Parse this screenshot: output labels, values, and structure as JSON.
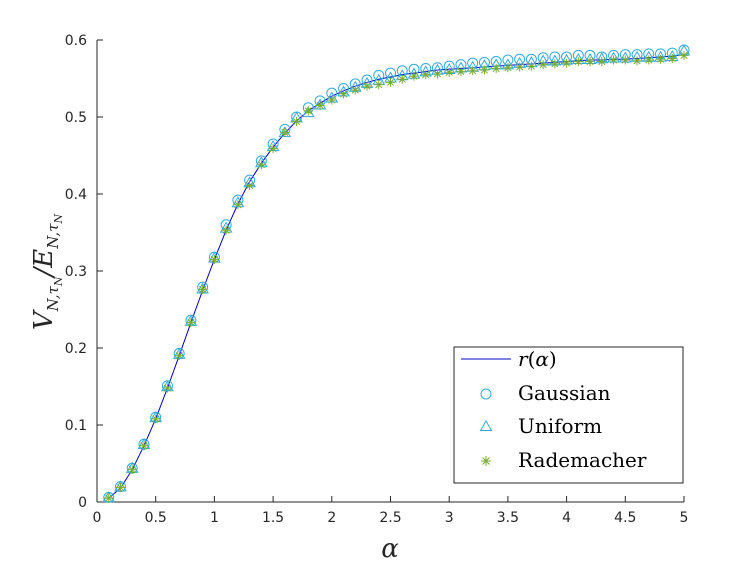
{
  "chart_data": {
    "type": "line",
    "xlabel": "α",
    "ylabel": {
      "main": "V",
      "sub1": "N,τ",
      "subsub1": "N",
      "slash": "/",
      "main2": "E",
      "sub2": "N,τ",
      "subsub2": "N"
    },
    "xlim": [
      0,
      5
    ],
    "ylim": [
      0,
      0.6
    ],
    "xticks": [
      0,
      0.5,
      1,
      1.5,
      2,
      2.5,
      3,
      3.5,
      4,
      4.5,
      5
    ],
    "xtick_labels": [
      "0",
      "0.5",
      "1",
      "1.5",
      "2",
      "2.5",
      "3",
      "3.5",
      "4",
      "4.5",
      "5"
    ],
    "yticks": [
      0,
      0.1,
      0.2,
      0.3,
      0.4,
      0.5,
      0.6
    ],
    "ytick_labels": [
      "0",
      "0.1",
      "0.2",
      "0.3",
      "0.4",
      "0.5",
      "0.6"
    ],
    "grid": false,
    "legend_position": "bottom-right",
    "x": [
      0.1,
      0.2,
      0.3,
      0.4,
      0.5,
      0.6,
      0.7,
      0.8,
      0.9,
      1.0,
      1.1,
      1.2,
      1.3,
      1.4,
      1.5,
      1.6,
      1.7,
      1.8,
      1.9,
      2.0,
      2.1,
      2.2,
      2.3,
      2.4,
      2.5,
      2.6,
      2.7,
      2.8,
      2.9,
      3.0,
      3.1,
      3.2,
      3.3,
      3.4,
      3.5,
      3.6,
      3.7,
      3.8,
      3.9,
      4.0,
      4.1,
      4.2,
      4.3,
      4.4,
      4.5,
      4.6,
      4.7,
      4.8,
      4.9,
      5.0
    ],
    "series": [
      {
        "name": "r(α)",
        "name_parts": [
          "r",
          "(",
          "α",
          ")"
        ],
        "style": "line",
        "color": "#0000cc",
        "values": [
          0.005,
          0.018,
          0.042,
          0.073,
          0.108,
          0.148,
          0.19,
          0.233,
          0.275,
          0.315,
          0.353,
          0.387,
          0.416,
          0.44,
          0.461,
          0.479,
          0.495,
          0.508,
          0.518,
          0.527,
          0.534,
          0.54,
          0.545,
          0.549,
          0.552,
          0.555,
          0.557,
          0.559,
          0.561,
          0.562,
          0.563,
          0.564,
          0.565,
          0.566,
          0.567,
          0.568,
          0.569,
          0.57,
          0.571,
          0.572,
          0.573,
          0.574,
          0.574,
          0.575,
          0.575,
          0.576,
          0.577,
          0.578,
          0.579,
          0.581
        ]
      },
      {
        "name": "Gaussian",
        "style": "circle",
        "color": "#33aadd",
        "values": [
          0.006,
          0.02,
          0.044,
          0.075,
          0.11,
          0.151,
          0.193,
          0.236,
          0.279,
          0.318,
          0.36,
          0.392,
          0.418,
          0.443,
          0.465,
          0.484,
          0.5,
          0.512,
          0.521,
          0.531,
          0.537,
          0.543,
          0.548,
          0.554,
          0.557,
          0.56,
          0.562,
          0.563,
          0.564,
          0.566,
          0.568,
          0.57,
          0.571,
          0.572,
          0.574,
          0.575,
          0.575,
          0.577,
          0.578,
          0.578,
          0.58,
          0.58,
          0.578,
          0.58,
          0.581,
          0.581,
          0.582,
          0.582,
          0.583,
          0.587
        ]
      },
      {
        "name": "Uniform",
        "style": "triangle",
        "color": "#33aadd",
        "values": [
          0.005,
          0.019,
          0.043,
          0.074,
          0.109,
          0.149,
          0.191,
          0.234,
          0.276,
          0.316,
          0.355,
          0.388,
          0.414,
          0.44,
          0.461,
          0.479,
          0.498,
          0.505,
          0.515,
          0.524,
          0.532,
          0.538,
          0.543,
          0.547,
          0.55,
          0.553,
          0.555,
          0.558,
          0.56,
          0.561,
          0.563,
          0.564,
          0.566,
          0.567,
          0.567,
          0.569,
          0.57,
          0.572,
          0.572,
          0.573,
          0.574,
          0.574,
          0.575,
          0.576,
          0.576,
          0.577,
          0.577,
          0.577,
          0.578,
          0.585
        ]
      },
      {
        "name": "Rademacher",
        "style": "asterisk",
        "color": "#77ac30",
        "values": [
          0.005,
          0.019,
          0.042,
          0.073,
          0.108,
          0.148,
          0.19,
          0.233,
          0.276,
          0.315,
          0.353,
          0.386,
          0.411,
          0.438,
          0.459,
          0.48,
          0.494,
          0.508,
          0.515,
          0.522,
          0.53,
          0.535,
          0.54,
          0.542,
          0.545,
          0.549,
          0.553,
          0.555,
          0.556,
          0.558,
          0.559,
          0.56,
          0.561,
          0.563,
          0.564,
          0.565,
          0.566,
          0.568,
          0.569,
          0.57,
          0.572,
          0.572,
          0.572,
          0.574,
          0.574,
          0.573,
          0.574,
          0.575,
          0.576,
          0.58
        ]
      }
    ]
  }
}
